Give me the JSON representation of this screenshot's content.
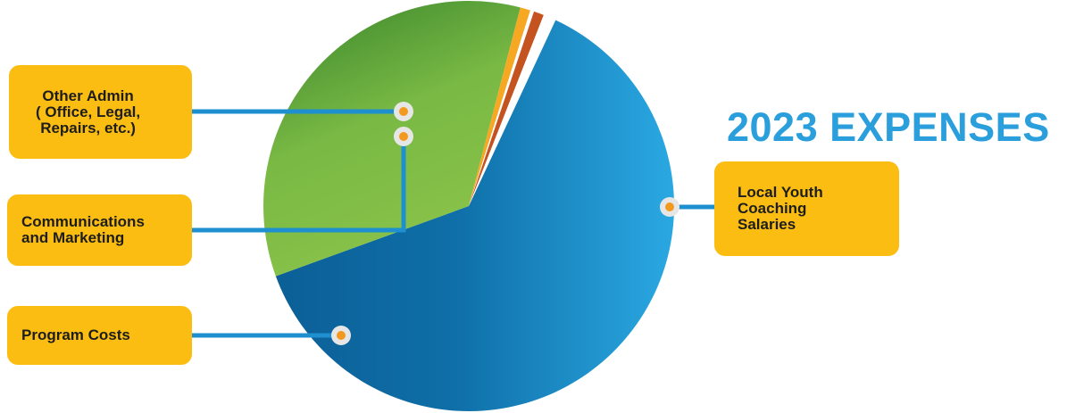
{
  "chart_data": {
    "type": "pie",
    "title": "2023 EXPENSES",
    "slices": [
      {
        "label": "Local Youth Coaching Salaries",
        "value": 62.5,
        "color": "#1f8fd0"
      },
      {
        "label": "Program Costs",
        "value": 34.6,
        "color": "#6eb13e"
      },
      {
        "label": "Communications and Marketing",
        "value": 0.8,
        "color": "#f7a823"
      },
      {
        "label": "Pie gap",
        "value": 0.3,
        "color": "#ffffff"
      },
      {
        "label": "Other Admin ( Office, Legal, Repairs, etc.)",
        "value": 0.8,
        "color": "#c4531f"
      },
      {
        "label": "Pie gap 2",
        "value": 1.0,
        "color": "#ffffff"
      }
    ]
  },
  "callouts": {
    "other_admin": "Other Admin\n( Office, Legal,\nRepairs, etc.)",
    "communications": "Communications\nand Marketing",
    "program_costs": "Program Costs",
    "coaching": "Local Youth\nCoaching\nSalaries"
  },
  "colors": {
    "callout_bg": "#fbbd12",
    "title": "#2b9fdc",
    "connector": "#1e8fcf"
  }
}
